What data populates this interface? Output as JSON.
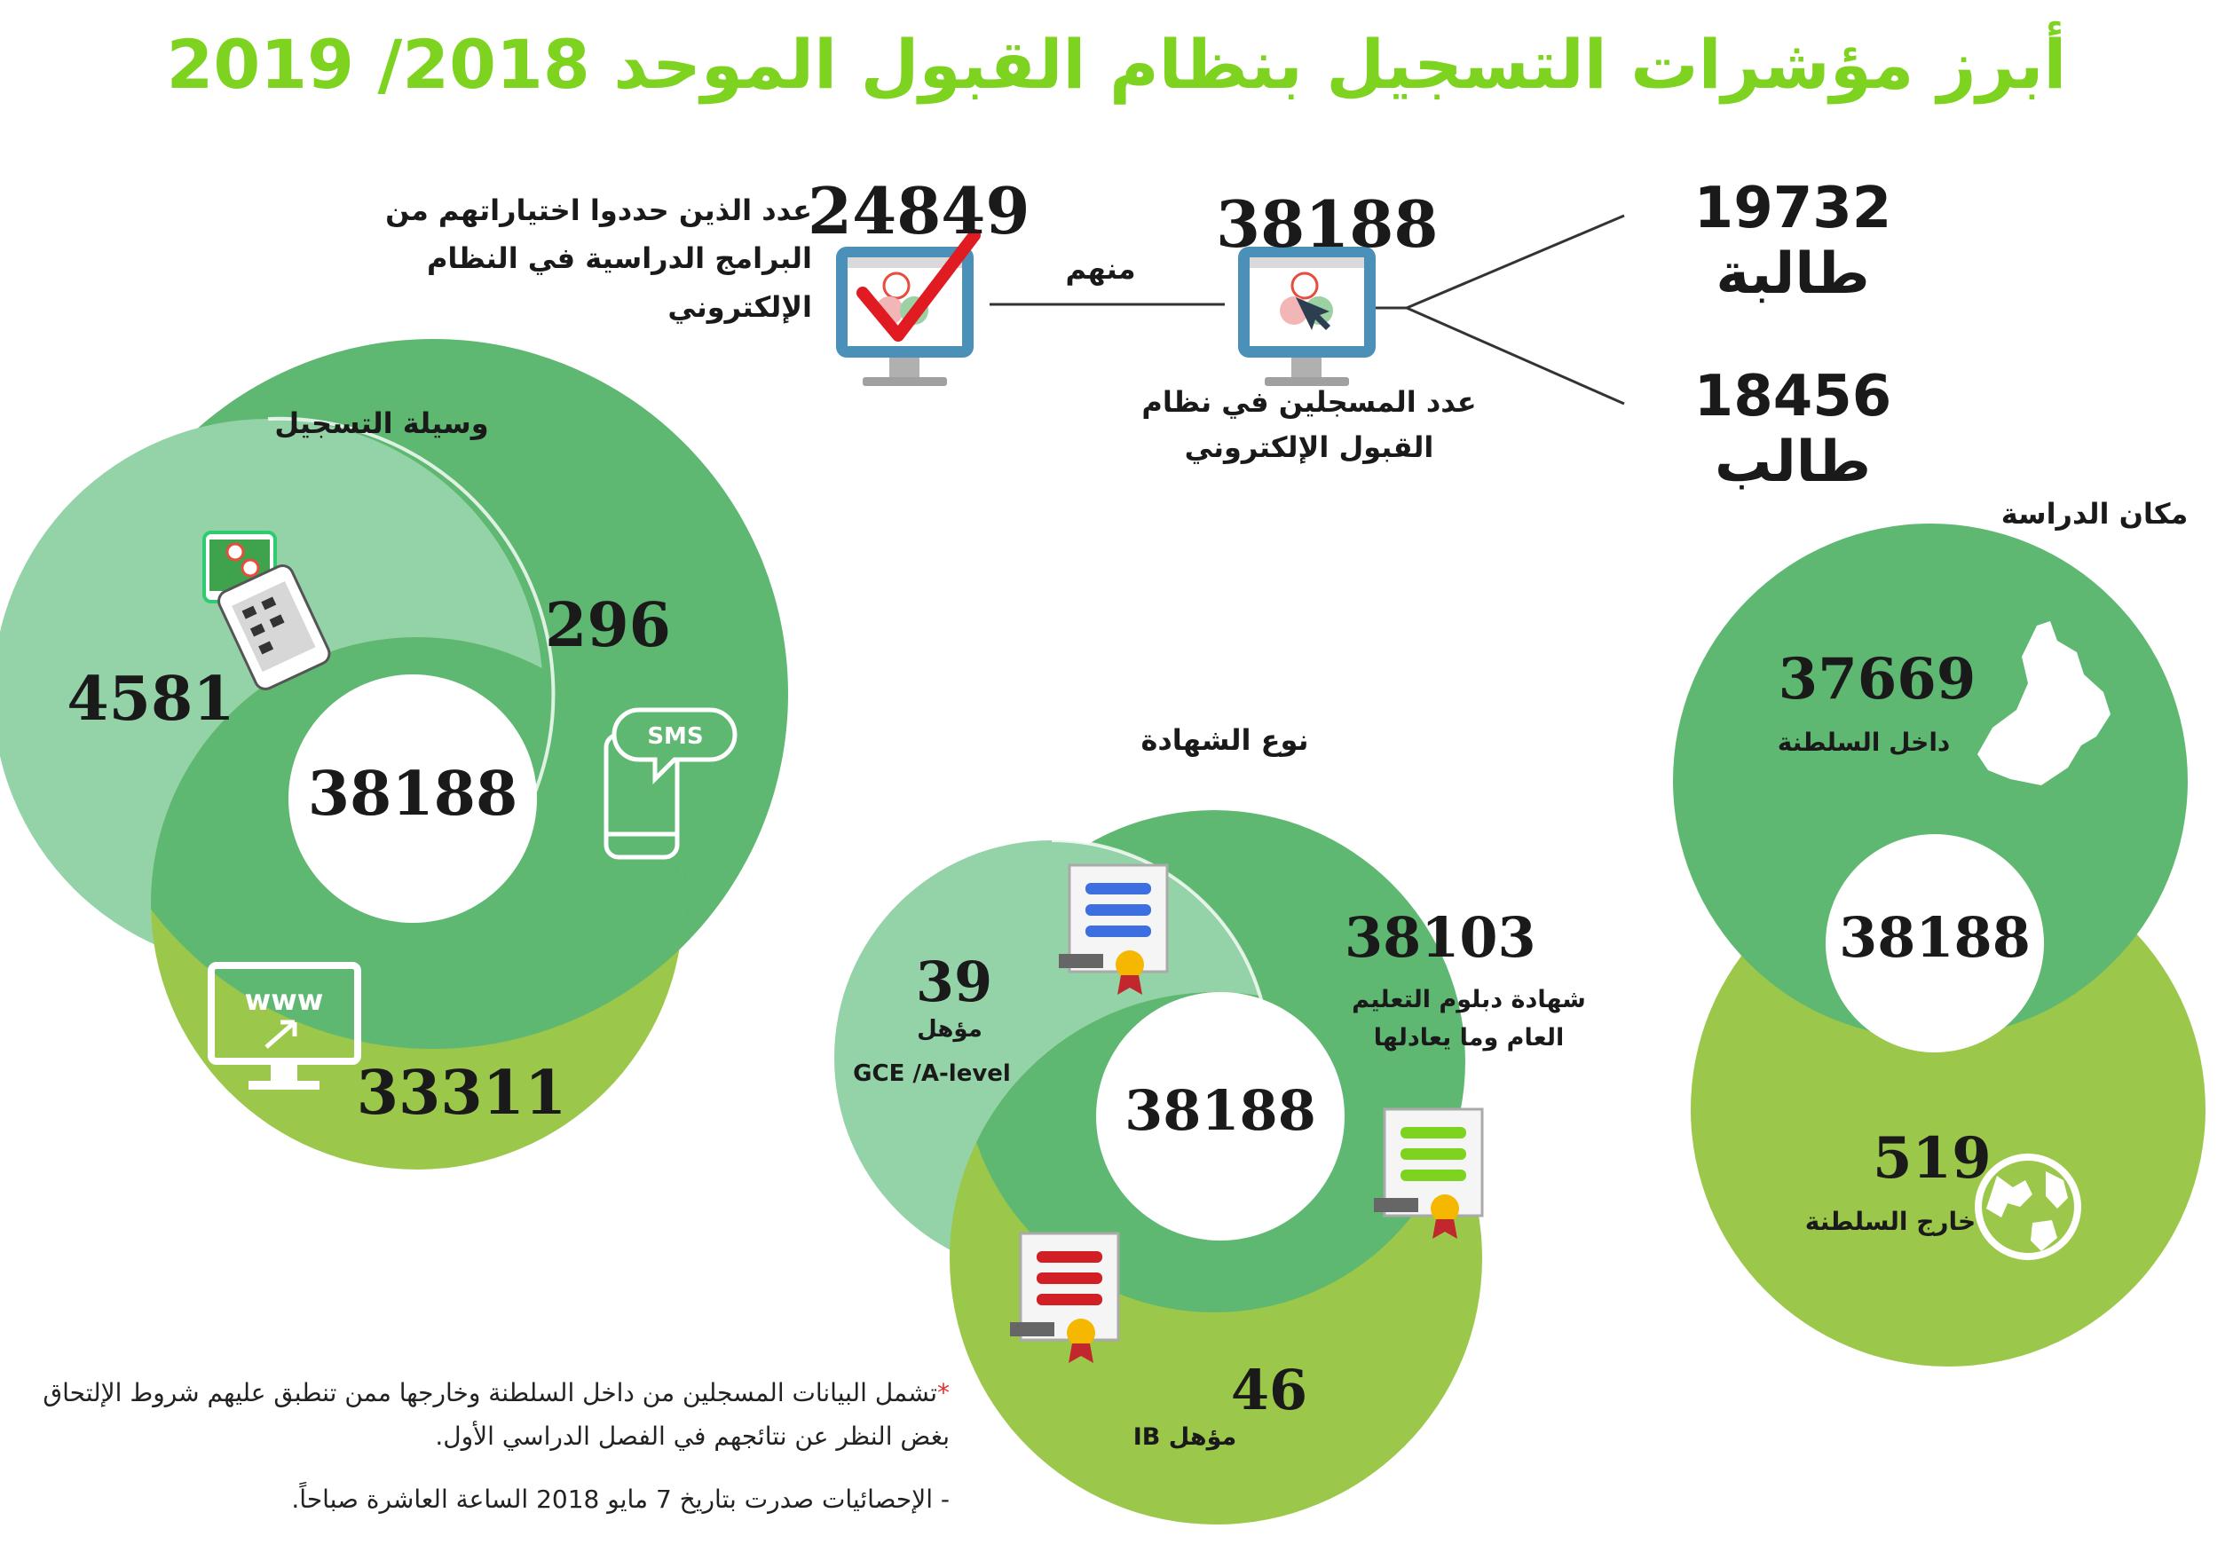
{
  "title": "أبرز مؤشرات التسجيل بنظام القبول الموحد 2018/ 2019",
  "top": {
    "registered_total": "38188",
    "registered_label": "عدد المسجلين في نظام القبول الإلكتروني",
    "chose_programs": "24849",
    "chose_programs_label": "عدد الذين حددوا اختياراتهم من البرامج الدراسية في النظام الإلكتروني",
    "of_them": "منهم",
    "female": "19732 طالبة",
    "male": "18456 طالب"
  },
  "registration_method": {
    "heading": "وسيلة التسجيل",
    "app_count": "4581",
    "sms_count": "296",
    "web_count": "33311",
    "total": "38188"
  },
  "certificate_type": {
    "heading": "نوع الشهادة",
    "gce_count": "39",
    "gce_label_1": "مؤهل",
    "gce_label_2": "GCE /A-level",
    "diploma_count": "38103",
    "diploma_label": "شهادة دبلوم التعليم العام وما يعادلها",
    "ib_count": "46",
    "ib_label": "مؤهل IB",
    "total": "38188"
  },
  "study_place": {
    "heading": "مكان الدراسة",
    "inside_count": "37669",
    "inside_label": "داخل السلطنة",
    "outside_count": "519",
    "outside_label": "خارج السلطنة",
    "total": "38188"
  },
  "notes": {
    "asterisk": "*",
    "note1": "تشمل البيانات المسجلين من داخل السلطنة وخارجها ممن تنطبق عليهم شروط الإلتحاق بغض النظر عن نتائجهم في الفصل الدراسي الأول.",
    "note2": "- الإحصائيات صدرت بتاريخ 7 مايو 2018 الساعة العاشرة صباحاً."
  },
  "colors": {
    "title_green": "#7ed321",
    "light_green": "#94d3a7",
    "medium_green": "#5fb872",
    "olive_green": "#9bc74a",
    "check_red": "#e11b22"
  },
  "icons": [
    "computer-icon",
    "checkmark-icon",
    "phone-icon",
    "sms-icon",
    "www-monitor-icon",
    "certificate-icon",
    "oman-map-icon",
    "globe-icon"
  ]
}
